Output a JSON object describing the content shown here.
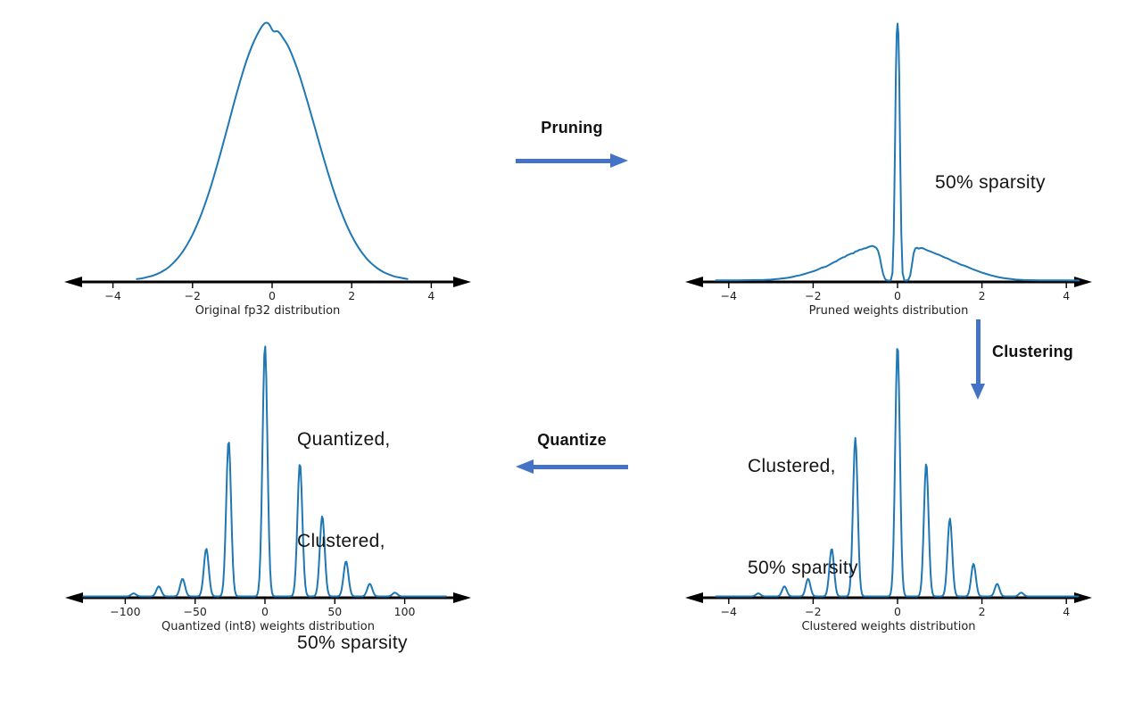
{
  "colors": {
    "curve": "#1f77b4",
    "flow_arrow": "#4472C4",
    "axis": "#000000",
    "text": "#151515"
  },
  "annotations": {
    "pruned_note": "50% sparsity",
    "clustered_note_lines": [
      "Clustered,",
      "50% sparsity"
    ],
    "quantized_note_lines": [
      "Quantized,",
      "Clustered,",
      "50% sparsity"
    ]
  },
  "arrows": {
    "pruning": {
      "label": "Pruning",
      "direction": "right"
    },
    "clustering": {
      "label": "Clustering",
      "direction": "down"
    },
    "quantize": {
      "label": "Quantize",
      "direction": "left"
    }
  },
  "chart_data": [
    {
      "id": "fp32",
      "type": "line",
      "title": "",
      "xlabel": "Original fp32 distribution",
      "ylabel": "",
      "xticks": {
        "values": [
          -4,
          -2,
          0,
          2,
          4
        ],
        "labels": [
          "−4",
          "−2",
          "0",
          "2",
          "4"
        ]
      },
      "xlim": [
        -5.2,
        5.0
      ],
      "ylim": [
        0,
        1.05
      ],
      "grid": false,
      "legend": "none",
      "curve": {
        "kind": "points",
        "smooth": true,
        "points": [
          [
            -3.4,
            0.006
          ],
          [
            -3.3,
            0.008
          ],
          [
            -3.2,
            0.011
          ],
          [
            -3.1,
            0.015
          ],
          [
            -3.0,
            0.019
          ],
          [
            -2.9,
            0.025
          ],
          [
            -2.8,
            0.032
          ],
          [
            -2.7,
            0.041
          ],
          [
            -2.6,
            0.052
          ],
          [
            -2.5,
            0.066
          ],
          [
            -2.4,
            0.082
          ],
          [
            -2.3,
            0.101
          ],
          [
            -2.2,
            0.123
          ],
          [
            -2.1,
            0.149
          ],
          [
            -2.0,
            0.178
          ],
          [
            -1.9,
            0.212
          ],
          [
            -1.8,
            0.249
          ],
          [
            -1.7,
            0.291
          ],
          [
            -1.6,
            0.336
          ],
          [
            -1.5,
            0.385
          ],
          [
            -1.4,
            0.438
          ],
          [
            -1.3,
            0.492
          ],
          [
            -1.2,
            0.549
          ],
          [
            -1.1,
            0.606
          ],
          [
            -1.0,
            0.664
          ],
          [
            -0.9,
            0.721
          ],
          [
            -0.8,
            0.775
          ],
          [
            -0.7,
            0.826
          ],
          [
            -0.6,
            0.872
          ],
          [
            -0.5,
            0.912
          ],
          [
            -0.4,
            0.946
          ],
          [
            -0.3,
            0.975
          ],
          [
            -0.25,
            0.987
          ],
          [
            -0.2,
            0.996
          ],
          [
            -0.15,
            1.0
          ],
          [
            -0.1,
            0.998
          ],
          [
            -0.05,
            0.988
          ],
          [
            0.0,
            0.973
          ],
          [
            0.05,
            0.966
          ],
          [
            0.1,
            0.967
          ],
          [
            0.15,
            0.966
          ],
          [
            0.2,
            0.958
          ],
          [
            0.3,
            0.935
          ],
          [
            0.4,
            0.91
          ],
          [
            0.5,
            0.875
          ],
          [
            0.6,
            0.835
          ],
          [
            0.7,
            0.79
          ],
          [
            0.8,
            0.74
          ],
          [
            0.9,
            0.688
          ],
          [
            1.0,
            0.634
          ],
          [
            1.1,
            0.58
          ],
          [
            1.2,
            0.525
          ],
          [
            1.3,
            0.472
          ],
          [
            1.4,
            0.42
          ],
          [
            1.5,
            0.371
          ],
          [
            1.6,
            0.324
          ],
          [
            1.7,
            0.281
          ],
          [
            1.8,
            0.242
          ],
          [
            1.9,
            0.206
          ],
          [
            2.0,
            0.174
          ],
          [
            2.1,
            0.146
          ],
          [
            2.2,
            0.121
          ],
          [
            2.3,
            0.1
          ],
          [
            2.4,
            0.081
          ],
          [
            2.5,
            0.066
          ],
          [
            2.6,
            0.053
          ],
          [
            2.7,
            0.042
          ],
          [
            2.8,
            0.033
          ],
          [
            2.9,
            0.026
          ],
          [
            3.0,
            0.02
          ],
          [
            3.1,
            0.015
          ],
          [
            3.2,
            0.012
          ],
          [
            3.3,
            0.009
          ],
          [
            3.4,
            0.006
          ]
        ]
      }
    },
    {
      "id": "pruned",
      "type": "line",
      "title": "",
      "xlabel": "Pruned weights distribution",
      "ylabel": "",
      "xticks": {
        "values": [
          -4,
          -2,
          0,
          2,
          4
        ],
        "labels": [
          "−4",
          "−2",
          "0",
          "2",
          "4"
        ]
      },
      "xlim": [
        -5.0,
        4.6
      ],
      "ylim": [
        0,
        1.05
      ],
      "grid": false,
      "legend": "none",
      "annotation": "50% sparsity",
      "curve": {
        "kind": "points",
        "smooth": false,
        "points": [
          [
            -4.3,
            0.001
          ],
          [
            -3.8,
            0.001
          ],
          [
            -3.4,
            0.002
          ],
          [
            -3.2,
            0.002
          ],
          [
            -3.0,
            0.004
          ],
          [
            -2.8,
            0.007
          ],
          [
            -2.6,
            0.011
          ],
          [
            -2.5,
            0.014
          ],
          [
            -2.4,
            0.018
          ],
          [
            -2.3,
            0.021
          ],
          [
            -2.2,
            0.026
          ],
          [
            -2.1,
            0.031
          ],
          [
            -2.0,
            0.036
          ],
          [
            -1.9,
            0.042
          ],
          [
            -1.8,
            0.05
          ],
          [
            -1.75,
            0.052
          ],
          [
            -1.7,
            0.054
          ],
          [
            -1.6,
            0.063
          ],
          [
            -1.5,
            0.072
          ],
          [
            -1.45,
            0.075
          ],
          [
            -1.4,
            0.081
          ],
          [
            -1.3,
            0.09
          ],
          [
            -1.25,
            0.092
          ],
          [
            -1.2,
            0.098
          ],
          [
            -1.1,
            0.105
          ],
          [
            -1.05,
            0.106
          ],
          [
            -1.0,
            0.113
          ],
          [
            -0.95,
            0.115
          ],
          [
            -0.9,
            0.12
          ],
          [
            -0.85,
            0.121
          ],
          [
            -0.8,
            0.125
          ],
          [
            -0.75,
            0.126
          ],
          [
            -0.7,
            0.13
          ],
          [
            -0.65,
            0.133
          ],
          [
            -0.6,
            0.135
          ],
          [
            -0.55,
            0.132
          ],
          [
            -0.5,
            0.127
          ],
          [
            -0.46,
            0.115
          ],
          [
            -0.42,
            0.09
          ],
          [
            -0.38,
            0.055
          ],
          [
            -0.34,
            0.025
          ],
          [
            -0.3,
            0.008
          ],
          [
            -0.27,
            0.002
          ],
          [
            -0.22,
            0.0
          ],
          [
            -0.16,
            0.001
          ],
          [
            -0.12,
            0.03
          ],
          [
            -0.09,
            0.18
          ],
          [
            -0.06,
            0.52
          ],
          [
            -0.04,
            0.8
          ],
          [
            -0.02,
            0.96
          ],
          [
            0.0,
            1.0
          ],
          [
            0.02,
            0.96
          ],
          [
            0.04,
            0.8
          ],
          [
            0.06,
            0.52
          ],
          [
            0.09,
            0.18
          ],
          [
            0.12,
            0.03
          ],
          [
            0.16,
            0.001
          ],
          [
            0.22,
            0.0
          ],
          [
            0.26,
            0.004
          ],
          [
            0.3,
            0.02
          ],
          [
            0.34,
            0.06
          ],
          [
            0.38,
            0.105
          ],
          [
            0.42,
            0.125
          ],
          [
            0.46,
            0.128
          ],
          [
            0.5,
            0.124
          ],
          [
            0.55,
            0.127
          ],
          [
            0.6,
            0.126
          ],
          [
            0.65,
            0.122
          ],
          [
            0.7,
            0.118
          ],
          [
            0.8,
            0.112
          ],
          [
            0.9,
            0.105
          ],
          [
            1.0,
            0.099
          ],
          [
            1.1,
            0.091
          ],
          [
            1.2,
            0.085
          ],
          [
            1.3,
            0.076
          ],
          [
            1.4,
            0.07
          ],
          [
            1.5,
            0.062
          ],
          [
            1.6,
            0.057
          ],
          [
            1.7,
            0.05
          ],
          [
            1.8,
            0.043
          ],
          [
            1.9,
            0.037
          ],
          [
            2.0,
            0.031
          ],
          [
            2.1,
            0.026
          ],
          [
            2.2,
            0.021
          ],
          [
            2.3,
            0.017
          ],
          [
            2.4,
            0.013
          ],
          [
            2.5,
            0.01
          ],
          [
            2.6,
            0.008
          ],
          [
            2.7,
            0.006
          ],
          [
            2.8,
            0.004
          ],
          [
            2.9,
            0.003
          ],
          [
            3.0,
            0.002
          ],
          [
            3.4,
            0.001
          ],
          [
            3.9,
            0.001
          ],
          [
            4.3,
            0.0005
          ]
        ]
      }
    },
    {
      "id": "clustered",
      "type": "line",
      "title": "",
      "xlabel": "Clustered weights distribution",
      "ylabel": "",
      "xticks": {
        "values": [
          -4,
          -2,
          0,
          2,
          4
        ],
        "labels": [
          "−4",
          "−2",
          "0",
          "2",
          "4"
        ]
      },
      "xlim": [
        -5.0,
        4.6
      ],
      "ylim": [
        0,
        1.05
      ],
      "grid": false,
      "legend": "none",
      "annotation": "Clustered,\n50% sparsity",
      "curve": {
        "kind": "gaussian_mixture",
        "sigma": 0.055,
        "sample_range": [
          -4.3,
          4.3
        ],
        "components": [
          [
            -3.3,
            0.012
          ],
          [
            -2.68,
            0.04
          ],
          [
            -2.12,
            0.07
          ],
          [
            -1.56,
            0.19
          ],
          [
            -1.0,
            0.63
          ],
          [
            0.0,
            1.0
          ],
          [
            0.68,
            0.53
          ],
          [
            1.24,
            0.31
          ],
          [
            1.8,
            0.13
          ],
          [
            2.36,
            0.05
          ],
          [
            2.93,
            0.015
          ]
        ]
      }
    },
    {
      "id": "quantized",
      "type": "line",
      "title": "",
      "xlabel": "Quantized (int8) weights distribution",
      "ylabel": "",
      "xticks": {
        "values": [
          -100,
          -50,
          0,
          50,
          100
        ],
        "labels": [
          "−100",
          "−50",
          "0",
          "50",
          "100"
        ]
      },
      "xlim": [
        -145,
        147
      ],
      "ylim": [
        0,
        1.05
      ],
      "grid": false,
      "legend": "none",
      "annotation": "Quantized,\nClustered,\n50% sparsity",
      "curve": {
        "kind": "gaussian_mixture",
        "sigma": 1.75,
        "sample_range": [
          -130,
          130
        ],
        "components": [
          [
            -94,
            0.012
          ],
          [
            -76,
            0.04
          ],
          [
            -59,
            0.07
          ],
          [
            -42,
            0.19
          ],
          [
            -26,
            0.62
          ],
          [
            0,
            1.0
          ],
          [
            25,
            0.53
          ],
          [
            41,
            0.32
          ],
          [
            58,
            0.14
          ],
          [
            75,
            0.05
          ],
          [
            93,
            0.015
          ]
        ]
      }
    }
  ]
}
